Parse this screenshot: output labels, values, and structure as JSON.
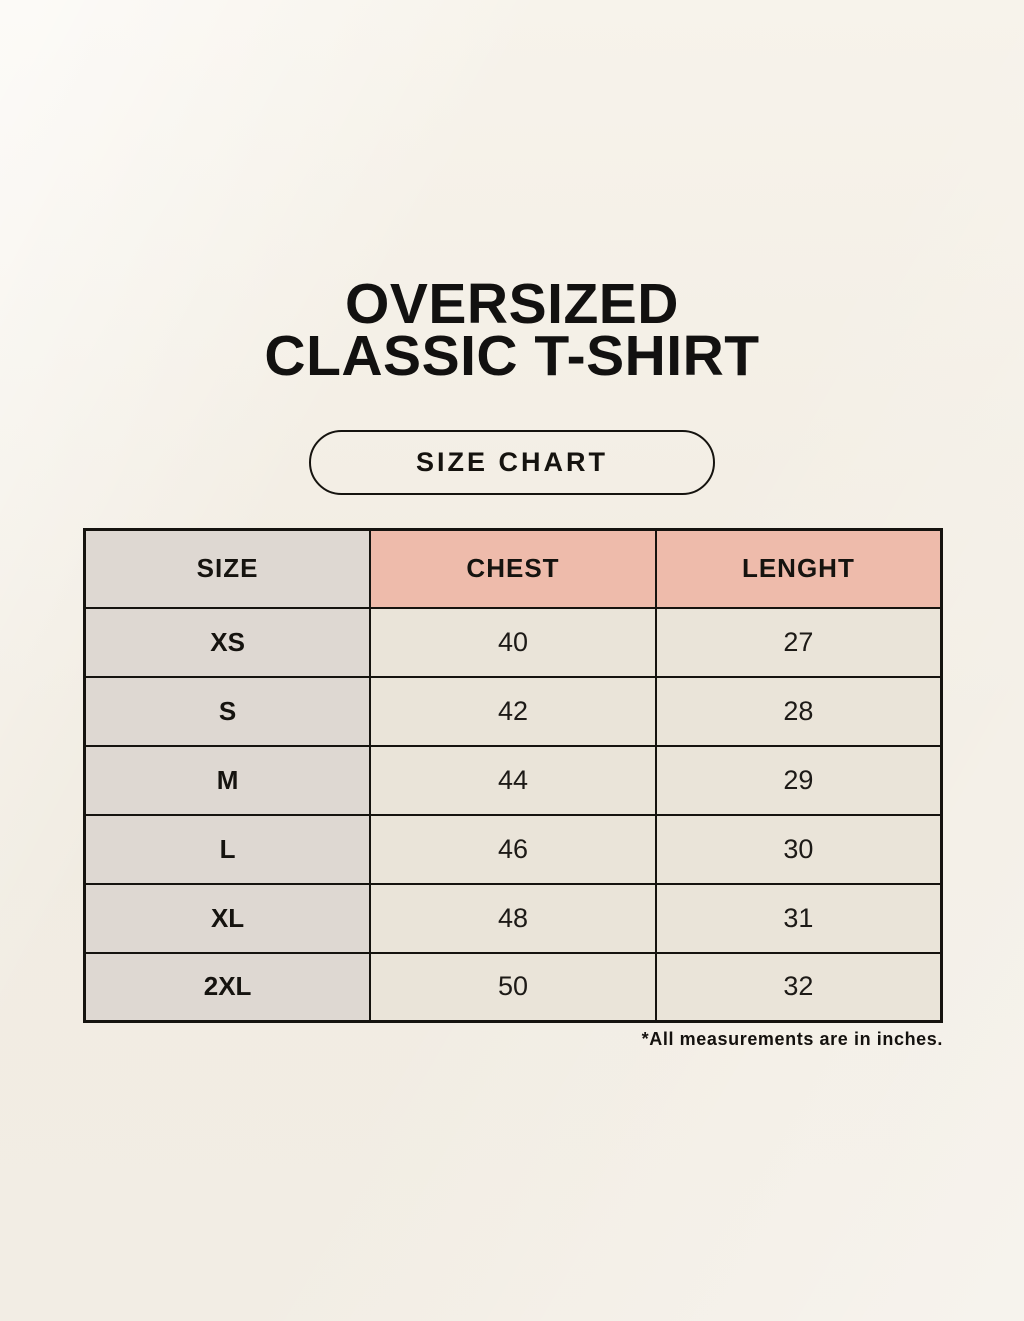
{
  "page": {
    "title_lines": [
      "OVERSIZED",
      "CLASSIC T-SHIRT"
    ],
    "size_chart_button": {
      "label": "SIZE CHART"
    }
  },
  "chart_data": {
    "type": "table",
    "title": "OVERSIZED CLASSIC T-SHIRT",
    "subtitle": "SIZE CHART",
    "columns": [
      "SIZE",
      "CHEST",
      "LENGHT"
    ],
    "rows": [
      [
        "XS",
        40,
        27
      ],
      [
        "S",
        42,
        28
      ],
      [
        "M",
        44,
        29
      ],
      [
        "L",
        46,
        30
      ],
      [
        "XL",
        48,
        31
      ],
      [
        "2XL",
        50,
        32
      ]
    ],
    "footnote": "*All measurements are in inches."
  },
  "colors": {
    "accent_pink": "#eebbab",
    "col_gray": "#ded8d2",
    "cell_cream": "#eae4d9",
    "table_border": "#15130f",
    "background_cream": "#f2ede3",
    "text": "#15130f"
  }
}
